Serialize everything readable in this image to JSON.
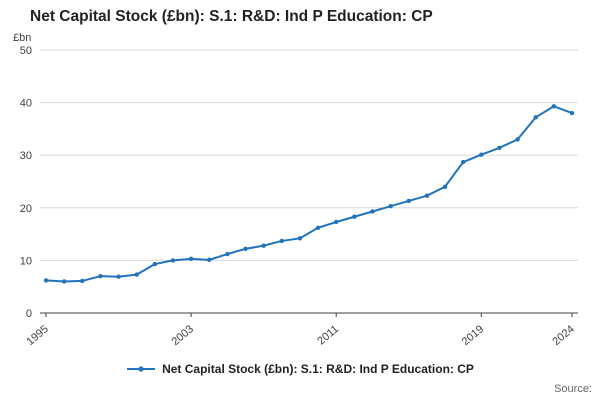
{
  "page": {
    "title": "Net Capital Stock (£bn): S.1: R&D: Ind P Education: CP",
    "unit_label": "£bn",
    "source_label": "Source:"
  },
  "legend": {
    "label": "Net Capital Stock (£bn): S.1: R&D: Ind P Education: CP"
  },
  "chart_data": {
    "type": "line",
    "title": "Net Capital Stock (£bn): S.1: R&D: Ind P Education: CP",
    "xlabel": "",
    "ylabel": "£bn",
    "x": [
      1995,
      1996,
      1997,
      1998,
      1999,
      2000,
      2001,
      2002,
      2003,
      2004,
      2005,
      2006,
      2007,
      2008,
      2009,
      2010,
      2011,
      2012,
      2013,
      2014,
      2015,
      2016,
      2017,
      2018,
      2019,
      2020,
      2021,
      2022,
      2023,
      2024
    ],
    "series": [
      {
        "name": "Net Capital Stock (£bn): S.1: R&D: Ind P Education: CP",
        "color": "#2073bc",
        "values": [
          6.2,
          6.0,
          6.1,
          7.0,
          6.9,
          7.3,
          9.3,
          10.0,
          10.3,
          10.1,
          11.2,
          12.2,
          12.8,
          13.7,
          14.2,
          16.2,
          17.3,
          18.3,
          19.3,
          20.3,
          21.3,
          22.3,
          24.0,
          28.7,
          30.1,
          31.4,
          33.0,
          37.2,
          39.3,
          38.0
        ]
      }
    ],
    "ylim": [
      0,
      50
    ],
    "yticks": [
      0,
      10,
      20,
      30,
      40,
      50
    ],
    "xticks": [
      1995,
      2003,
      2011,
      2019,
      2024
    ],
    "grid": true,
    "marker": "circle",
    "legend_position": "bottom",
    "colors": {
      "line": "#2073bc",
      "gridline": "#d9d9d9",
      "axis": "#414042",
      "tick_text": "#414042"
    }
  }
}
